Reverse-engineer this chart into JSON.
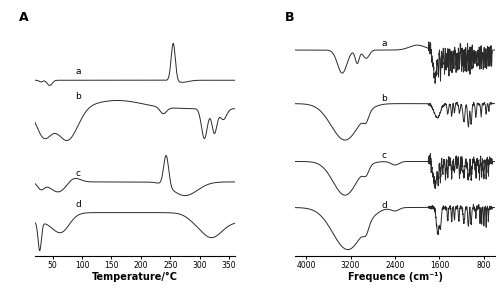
{
  "panel_A_label": "A",
  "panel_B_label": "B",
  "dsc_xlabel": "Temperature/°C",
  "dsc_xticks": [
    50,
    100,
    150,
    200,
    250,
    300,
    350
  ],
  "dsc_xlim": [
    20,
    360
  ],
  "ftir_xlabel": "Frequence (cm⁻¹)",
  "ftir_xticks": [
    4000,
    3200,
    2400,
    1600,
    800
  ],
  "ftir_xlim": [
    4200,
    600
  ],
  "curve_labels": [
    "a",
    "b",
    "c",
    "d"
  ],
  "line_color": "#2a2a2a",
  "line_width": 0.7,
  "bg_color": "#ffffff"
}
